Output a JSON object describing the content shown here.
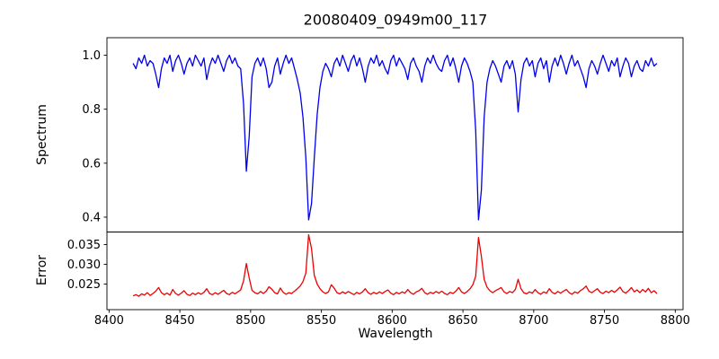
{
  "chart_data": {
    "type": "line",
    "title": "20080409_0949m00_117",
    "xlabel": "Wavelength",
    "grid": false,
    "legend": "none",
    "xlim": [
      8398.5,
      8805.5
    ],
    "xticks": [
      8400,
      8450,
      8500,
      8550,
      8600,
      8650,
      8700,
      8750,
      8800
    ],
    "x_start": 8417,
    "x_step": 2,
    "panels": [
      {
        "name": "spectrum",
        "ylabel": "Spectrum",
        "color": "#0000ee",
        "ylim": [
          0.345,
          1.065
        ],
        "yticks": [
          0.4,
          0.6,
          0.8,
          1.0
        ],
        "ytick_labels": [
          "0.4",
          "0.6",
          "0.8",
          "1.0"
        ],
        "values": [
          0.97,
          0.95,
          0.99,
          0.97,
          1.0,
          0.96,
          0.98,
          0.97,
          0.93,
          0.88,
          0.95,
          0.99,
          0.97,
          1.0,
          0.94,
          0.98,
          1.0,
          0.97,
          0.93,
          0.97,
          0.99,
          0.96,
          1.0,
          0.98,
          0.96,
          0.99,
          0.91,
          0.96,
          0.99,
          0.97,
          1.0,
          0.97,
          0.94,
          0.98,
          1.0,
          0.97,
          0.99,
          0.96,
          0.95,
          0.82,
          0.57,
          0.7,
          0.92,
          0.97,
          0.99,
          0.96,
          0.99,
          0.95,
          0.88,
          0.9,
          0.96,
          0.99,
          0.93,
          0.97,
          1.0,
          0.97,
          0.99,
          0.95,
          0.91,
          0.86,
          0.77,
          0.62,
          0.39,
          0.45,
          0.62,
          0.78,
          0.88,
          0.94,
          0.97,
          0.95,
          0.92,
          0.97,
          0.99,
          0.96,
          1.0,
          0.97,
          0.94,
          0.98,
          1.0,
          0.96,
          0.99,
          0.95,
          0.9,
          0.96,
          0.99,
          0.97,
          1.0,
          0.96,
          0.98,
          0.95,
          0.93,
          0.98,
          1.0,
          0.96,
          0.99,
          0.97,
          0.95,
          0.91,
          0.97,
          0.99,
          0.96,
          0.94,
          0.9,
          0.96,
          0.99,
          0.97,
          1.0,
          0.97,
          0.95,
          0.94,
          0.98,
          1.0,
          0.96,
          0.99,
          0.95,
          0.9,
          0.96,
          0.99,
          0.97,
          0.94,
          0.9,
          0.72,
          0.39,
          0.5,
          0.77,
          0.9,
          0.95,
          0.98,
          0.96,
          0.93,
          0.9,
          0.96,
          0.98,
          0.95,
          0.98,
          0.93,
          0.79,
          0.91,
          0.97,
          0.99,
          0.96,
          0.98,
          0.92,
          0.97,
          0.99,
          0.95,
          0.98,
          0.9,
          0.96,
          0.99,
          0.96,
          1.0,
          0.97,
          0.93,
          0.97,
          1.0,
          0.96,
          0.98,
          0.95,
          0.92,
          0.88,
          0.95,
          0.98,
          0.96,
          0.93,
          0.97,
          1.0,
          0.97,
          0.94,
          0.98,
          0.96,
          0.99,
          0.92,
          0.96,
          0.99,
          0.97,
          0.92,
          0.96,
          0.98,
          0.95,
          0.94,
          0.98,
          0.96,
          0.99,
          0.96,
          0.97
        ]
      },
      {
        "name": "error",
        "ylabel": "Error",
        "color": "#ee0000",
        "ylim": [
          0.0185,
          0.0382
        ],
        "yticks": [
          0.025,
          0.03,
          0.035
        ],
        "ytick_labels": [
          "0.025",
          "0.030",
          "0.035"
        ],
        "values": [
          0.022,
          0.0223,
          0.0219,
          0.0225,
          0.0222,
          0.0228,
          0.0221,
          0.0226,
          0.0232,
          0.0241,
          0.0228,
          0.0223,
          0.0227,
          0.0222,
          0.0236,
          0.0226,
          0.0222,
          0.0227,
          0.0233,
          0.0224,
          0.0221,
          0.0227,
          0.0223,
          0.0228,
          0.0224,
          0.0229,
          0.0238,
          0.0226,
          0.0223,
          0.0228,
          0.0224,
          0.0229,
          0.0234,
          0.0226,
          0.0223,
          0.0229,
          0.0225,
          0.023,
          0.0235,
          0.0258,
          0.0302,
          0.0265,
          0.0234,
          0.0228,
          0.0225,
          0.0231,
          0.0226,
          0.0232,
          0.0243,
          0.0237,
          0.0228,
          0.0225,
          0.024,
          0.0229,
          0.0224,
          0.0228,
          0.0226,
          0.0232,
          0.0238,
          0.0245,
          0.0256,
          0.0278,
          0.0375,
          0.034,
          0.0272,
          0.025,
          0.0238,
          0.023,
          0.0226,
          0.023,
          0.0248,
          0.024,
          0.0228,
          0.0225,
          0.023,
          0.0226,
          0.0231,
          0.0227,
          0.0223,
          0.0229,
          0.0225,
          0.023,
          0.0238,
          0.0228,
          0.0224,
          0.0229,
          0.0225,
          0.023,
          0.0226,
          0.0231,
          0.0235,
          0.0227,
          0.0223,
          0.0229,
          0.0225,
          0.023,
          0.0227,
          0.0236,
          0.0228,
          0.0224,
          0.023,
          0.0233,
          0.0239,
          0.0228,
          0.0224,
          0.0229,
          0.0226,
          0.0231,
          0.0227,
          0.0232,
          0.0226,
          0.0223,
          0.0229,
          0.0226,
          0.0232,
          0.0241,
          0.023,
          0.0226,
          0.0231,
          0.0238,
          0.0248,
          0.027,
          0.0368,
          0.032,
          0.0262,
          0.0242,
          0.0233,
          0.0228,
          0.0233,
          0.0237,
          0.0241,
          0.023,
          0.0226,
          0.0231,
          0.0228,
          0.0236,
          0.0262,
          0.0238,
          0.0228,
          0.0225,
          0.023,
          0.0227,
          0.0236,
          0.0228,
          0.0224,
          0.023,
          0.0227,
          0.0238,
          0.0229,
          0.0225,
          0.0231,
          0.0227,
          0.0232,
          0.0236,
          0.0228,
          0.0224,
          0.023,
          0.0227,
          0.0233,
          0.0238,
          0.0245,
          0.0232,
          0.0228,
          0.0233,
          0.0238,
          0.0229,
          0.0226,
          0.0232,
          0.0228,
          0.0234,
          0.0229,
          0.0235,
          0.0242,
          0.0231,
          0.0227,
          0.0233,
          0.0241,
          0.023,
          0.0235,
          0.0228,
          0.0236,
          0.023,
          0.0239,
          0.0228,
          0.0233,
          0.0226
        ]
      }
    ]
  }
}
